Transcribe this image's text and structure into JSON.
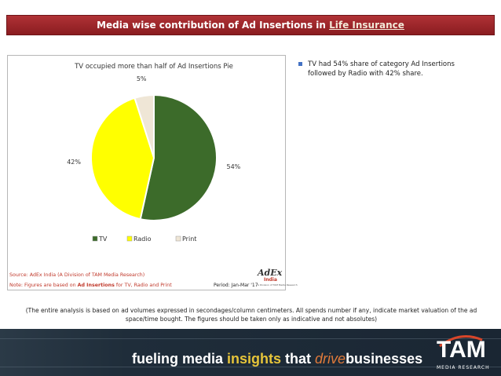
{
  "header": {
    "title": "Media wise contribution of Ad Insertions in ",
    "title_highlight": "Life Insurance"
  },
  "chart_data": {
    "type": "pie",
    "title": "TV occupied more than half of Ad Insertions Pie",
    "slices": [
      {
        "label": "TV",
        "value": 54,
        "display": "54%",
        "color": "#3c6b2a"
      },
      {
        "label": "Radio",
        "value": 42,
        "display": "42%",
        "color": "#ffff00"
      },
      {
        "label": "Print",
        "value": 5,
        "display": "5%",
        "color": "#efe6d6"
      }
    ],
    "legend_position": "bottom"
  },
  "chart_footer": {
    "source": "Source: AdEx India (A Division of TAM Media Research)",
    "note_prefix": "Note: Figures are based on ",
    "note_bold": "Ad Insertions",
    "note_suffix": " for TV, Radio and Print",
    "period": "Period: Jan-Mar '17"
  },
  "adex_logo": {
    "word": "AdEx",
    "sub": "India",
    "tiny": "A Division of TAM Media Research"
  },
  "bullet": {
    "text": "TV had 54% share of category Ad Insertions followed by Radio with 42% share."
  },
  "footnote": "(The entire analysis is based on ad volumes expressed in secondages/column centimeters. All spends number if any, indicate market valuation of the ad space/time bought. The figures should be taken only as indicative and not absolutes)",
  "footer": {
    "tag_a": "fueling media ",
    "tag_b": "insights",
    "tag_c": " that ",
    "tag_d": "drive",
    "tag_e": "businesses",
    "logo_word": "TAM",
    "logo_sub": "MEDIA RESEARCH",
    "colors": {
      "insights": "#e6c43a",
      "drive": "#e07a3a"
    }
  }
}
